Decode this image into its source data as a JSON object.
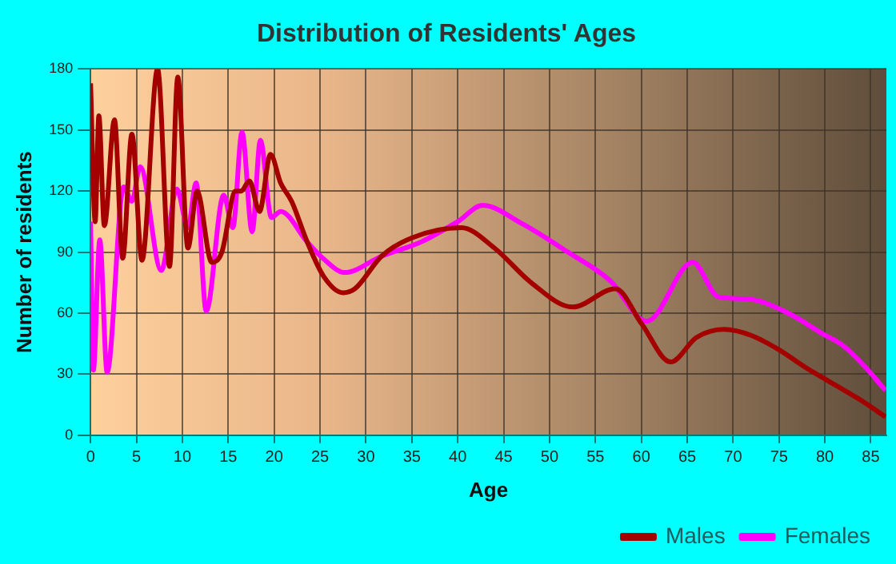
{
  "chart_data": {
    "type": "line",
    "title": "Distribution of Residents' Ages",
    "xlabel": "Age",
    "ylabel": "Number of residents",
    "xlim": [
      0,
      86.7
    ],
    "xticks": [
      0,
      5,
      10,
      15,
      20,
      25,
      30,
      35,
      40,
      45,
      50,
      55,
      60,
      65,
      70,
      75,
      80,
      85
    ],
    "ylim": [
      0,
      180
    ],
    "yticks": [
      0,
      30,
      60,
      90,
      120,
      150,
      180
    ],
    "grid": true,
    "legend": "bottom right",
    "marker": "none",
    "line_style": "solid",
    "series": [
      {
        "name": "Males",
        "color": "#a50000",
        "x": [
          0,
          0.5,
          0.9,
          1.5,
          2.6,
          3.5,
          4.5,
          5.6,
          7.3,
          8.6,
          9.5,
          10.6,
          11.6,
          13.2,
          14.3,
          15.8,
          16.4,
          17.3,
          18.4,
          19.6,
          20.7,
          21.9,
          23.6,
          25.4,
          27.5,
          28.8,
          31.7,
          35,
          40.4,
          44,
          48,
          52.5,
          57.2,
          60,
          63.2,
          66,
          69,
          72,
          75,
          78,
          81,
          84,
          86.6
        ],
        "values": [
          173,
          105,
          157,
          103,
          155,
          87,
          148,
          86,
          180,
          83,
          176,
          92,
          120,
          85,
          90,
          120,
          120,
          125,
          110,
          138,
          124,
          115,
          95,
          78,
          70,
          72,
          88,
          97,
          102,
          92,
          75,
          63,
          72,
          55,
          36,
          48,
          52,
          49,
          42,
          33,
          25,
          17,
          9
        ]
      },
      {
        "name": "Females",
        "color": "#ff00ff",
        "x": [
          0,
          0.3,
          1,
          1.8,
          3.6,
          4.5,
          5.4,
          7.7,
          9.4,
          10.6,
          11.5,
          12.6,
          14.5,
          15.5,
          16.5,
          17.6,
          18.5,
          19.7,
          20.7,
          23.6,
          25.3,
          27.7,
          31.7,
          36,
          40,
          42.7,
          47,
          52,
          56.6,
          60.6,
          65.6,
          68.4,
          71.6,
          76,
          79.7,
          82,
          84.5,
          86.6
        ],
        "values": [
          105,
          32,
          96,
          31,
          122,
          115,
          132,
          81,
          121,
          102,
          124,
          61,
          118,
          102,
          149,
          100,
          145,
          107,
          110,
          95,
          87,
          80,
          88,
          95,
          105,
          113,
          104,
          90,
          76,
          56,
          85,
          68,
          67,
          60,
          50,
          44,
          33,
          22
        ]
      }
    ]
  }
}
